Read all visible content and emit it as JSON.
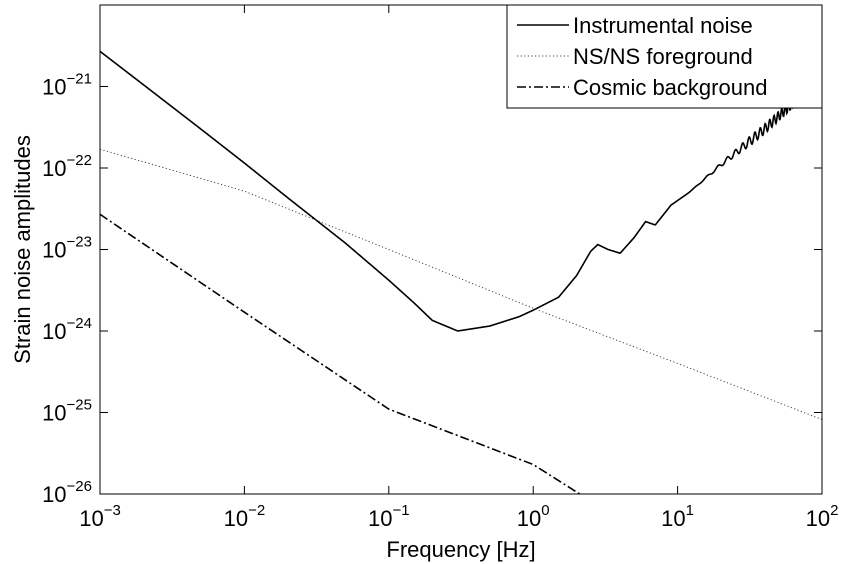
{
  "chart_data": {
    "type": "line",
    "title": "",
    "xlabel": "Frequency [Hz]",
    "ylabel": "Strain noise amplitudes",
    "xscale": "log",
    "yscale": "log",
    "xlim": [
      0.001,
      100
    ],
    "ylim": [
      1e-26,
      1e-20
    ],
    "grid": false,
    "legend_position": "top-right",
    "x_ticks": [
      {
        "base": "10",
        "exp": "−3"
      },
      {
        "base": "10",
        "exp": "−2"
      },
      {
        "base": "10",
        "exp": "−1"
      },
      {
        "base": "10",
        "exp": "0"
      },
      {
        "base": "10",
        "exp": "1"
      },
      {
        "base": "10",
        "exp": "2"
      }
    ],
    "y_ticks": [
      {
        "base": "10",
        "exp": "−26"
      },
      {
        "base": "10",
        "exp": "−25"
      },
      {
        "base": "10",
        "exp": "−24"
      },
      {
        "base": "10",
        "exp": "−23"
      },
      {
        "base": "10",
        "exp": "−22"
      },
      {
        "base": "10",
        "exp": "−21"
      }
    ],
    "series": [
      {
        "name": "Instrumental noise",
        "style": "solid",
        "color": "#000000",
        "points": [
          [
            0.001,
            2.7e-21
          ],
          [
            0.002,
            1.05e-21
          ],
          [
            0.005,
            3e-22
          ],
          [
            0.01,
            1.15e-22
          ],
          [
            0.02,
            4.3e-23
          ],
          [
            0.05,
            1.2e-23
          ],
          [
            0.1,
            4.2e-24
          ],
          [
            0.15,
            2.2e-24
          ],
          [
            0.2,
            1.35e-24
          ],
          [
            0.3,
            1e-24
          ],
          [
            0.5,
            1.15e-24
          ],
          [
            0.8,
            1.5e-24
          ],
          [
            1.0,
            1.8e-24
          ],
          [
            1.5,
            2.6e-24
          ],
          [
            2.0,
            4.8e-24
          ],
          [
            2.5,
            9.5e-24
          ],
          [
            2.8,
            1.15e-23
          ],
          [
            3.3,
            1e-23
          ],
          [
            4.0,
            9e-24
          ],
          [
            5.0,
            1.4e-23
          ],
          [
            6.0,
            2.2e-23
          ],
          [
            7.0,
            2e-23
          ],
          [
            9.0,
            3.5e-23
          ],
          [
            12.0,
            5e-23
          ],
          [
            20.0,
            1.1e-22
          ],
          [
            40.0,
            3e-22
          ],
          [
            70.0,
            7.5e-22
          ],
          [
            100.0,
            1.3e-21
          ]
        ],
        "oscillation_onset_hz": 2.0
      },
      {
        "name": "NS/NS foreground",
        "style": "dotted",
        "color": "#444444",
        "points": [
          [
            0.001,
            1.7e-22
          ],
          [
            0.01,
            5.2e-23
          ],
          [
            0.1,
            1e-23
          ],
          [
            1.0,
            1.9e-24
          ],
          [
            10.0,
            4e-25
          ],
          [
            100.0,
            8.2e-26
          ]
        ]
      },
      {
        "name": "Cosmic background",
        "style": "dashdot",
        "color": "#000000",
        "points": [
          [
            0.001,
            2.7e-23
          ],
          [
            0.01,
            1.7e-24
          ],
          [
            0.1,
            1.1e-25
          ],
          [
            1.0,
            2.3e-26
          ],
          [
            2.1,
            1e-26
          ]
        ]
      }
    ]
  }
}
